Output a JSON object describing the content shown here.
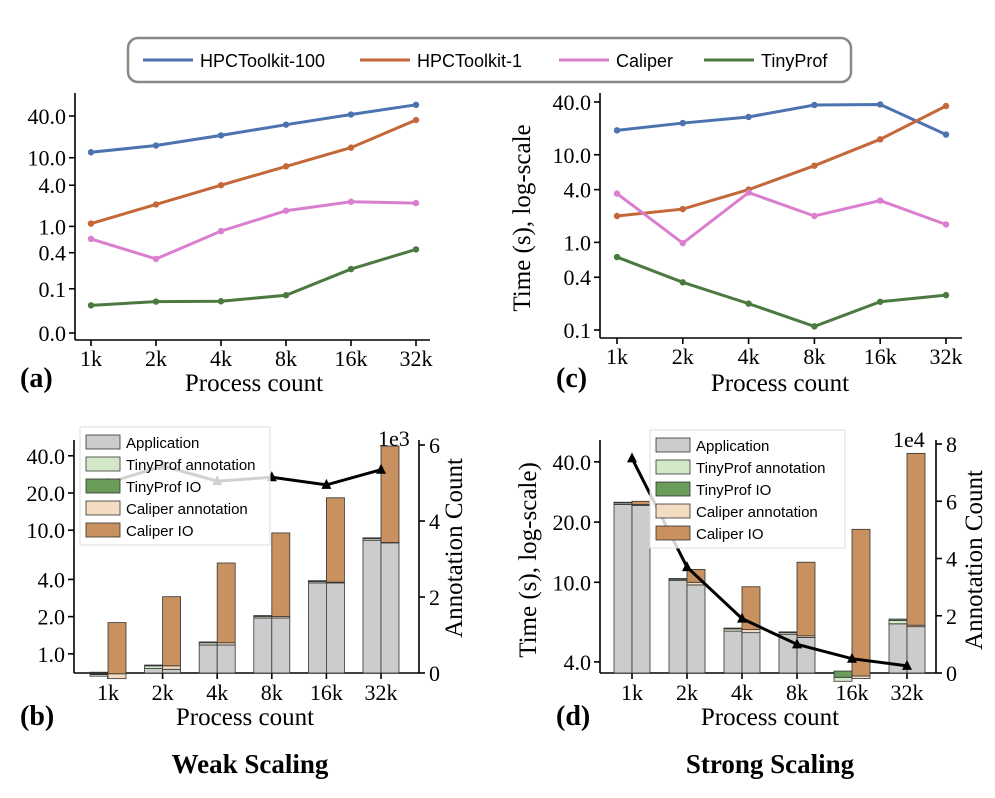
{
  "legend_top": {
    "entries": [
      {
        "label": "HPCToolkit-100",
        "color": "#4c72b0"
      },
      {
        "label": "HPCToolkit-1",
        "color": "#c4683a"
      },
      {
        "label": "Caliper",
        "color": "#da7fcf"
      },
      {
        "label": "TinyProf",
        "color": "#4a7a40"
      }
    ]
  },
  "captions": {
    "weak": "Weak Scaling",
    "strong": "Strong Scaling"
  },
  "chart_data": [
    {
      "panel": "(a)",
      "type": "line",
      "xlabel": "Process count",
      "ylabel": "",
      "scale": "log",
      "categories": [
        "1k",
        "2k",
        "4k",
        "8k",
        "16k",
        "32k"
      ],
      "yticks": [
        "0.0",
        "0.1",
        "0.4",
        "1.0",
        "4.0",
        "10.0",
        "40.0"
      ],
      "series": [
        {
          "name": "HPCToolkit-100",
          "color": "#4c72b0",
          "values": [
            12,
            15,
            21,
            30,
            42,
            58
          ]
        },
        {
          "name": "HPCToolkit-1",
          "color": "#c4683a",
          "values": [
            1.1,
            2.1,
            4.0,
            7.5,
            14,
            35
          ]
        },
        {
          "name": "Caliper",
          "color": "#da7fcf",
          "values": [
            0.65,
            0.32,
            0.85,
            1.7,
            2.3,
            2.2
          ]
        },
        {
          "name": "TinyProf",
          "color": "#4a7a40",
          "values": [
            0.045,
            0.055,
            0.056,
            0.075,
            0.22,
            0.45
          ]
        }
      ]
    },
    {
      "panel": "(c)",
      "type": "line",
      "xlabel": "Process count",
      "ylabel": "Time (s), log-scale",
      "scale": "log",
      "categories": [
        "1k",
        "2k",
        "4k",
        "8k",
        "16k",
        "32k"
      ],
      "yticks": [
        "0.1",
        "0.4",
        "1.0",
        "4.0",
        "10.0",
        "40.0"
      ],
      "series": [
        {
          "name": "HPCToolkit-100",
          "color": "#4c72b0",
          "values": [
            19,
            23,
            27,
            37,
            37.5,
            17
          ]
        },
        {
          "name": "HPCToolkit-1",
          "color": "#c4683a",
          "values": [
            2.0,
            2.4,
            4.0,
            7.5,
            15,
            36
          ]
        },
        {
          "name": "Caliper",
          "color": "#da7fcf",
          "values": [
            3.6,
            0.98,
            3.7,
            2.0,
            3.0,
            1.6
          ]
        },
        {
          "name": "TinyProf",
          "color": "#4a7a40",
          "values": [
            0.68,
            0.35,
            0.2,
            0.11,
            0.21,
            0.25
          ]
        }
      ]
    },
    {
      "panel": "(b)",
      "type": "bar",
      "xlabel": "Process count",
      "ylabel": "",
      "y2label": "Annotation Count",
      "y2exponent": "1e3",
      "categories": [
        "1k",
        "2k",
        "4k",
        "8k",
        "16k",
        "32k"
      ],
      "yticks": [
        "1.0",
        "2.0",
        "4.0",
        "10.0",
        "20.0",
        "40.0"
      ],
      "y2ticks": [
        "0",
        "2",
        "4",
        "6"
      ],
      "legend": [
        {
          "label": "Application",
          "color": "#cccccc"
        },
        {
          "label": "TinyProf annotation",
          "color": "#d3e8c9"
        },
        {
          "label": "TinyProf IO",
          "color": "#6a9d5a"
        },
        {
          "label": "Caliper annotation",
          "color": "#f3dcc2"
        },
        {
          "label": "Caliper IO",
          "color": "#c9915f"
        }
      ],
      "stacks": [
        {
          "category": "1k",
          "tinyprof": [
            0.66,
            0.02,
            0.005
          ],
          "caliper": [
            0.63,
            0.06,
            1.1
          ]
        },
        {
          "category": "2k",
          "tinyprof": [
            0.76,
            0.04,
            0.01
          ],
          "caliper": [
            0.75,
            0.05,
            2.1
          ]
        },
        {
          "category": "4k",
          "tinyprof": [
            1.18,
            0.05,
            0.01
          ],
          "caliper": [
            1.18,
            0.05,
            4.2
          ]
        },
        {
          "category": "8k",
          "tinyprof": [
            1.95,
            0.06,
            0.01
          ],
          "caliper": [
            1.95,
            0.06,
            7.5
          ]
        },
        {
          "category": "16k",
          "tinyprof": [
            3.75,
            0.1,
            0.02
          ],
          "caliper": [
            3.75,
            0.05,
            14.5
          ]
        },
        {
          "category": "32k",
          "tinyprof": [
            8.3,
            0.25,
            0.05
          ],
          "caliper": [
            7.9,
            0.05,
            40
          ]
        }
      ],
      "annotation_count": [
        5.0,
        5.45,
        5.05,
        5.15,
        4.95,
        5.35
      ]
    },
    {
      "panel": "(d)",
      "type": "bar",
      "xlabel": "Process count",
      "ylabel": "Time (s), log-scale)",
      "y2label": "Annotation Count",
      "y2exponent": "1e4",
      "categories": [
        "1k",
        "2k",
        "4k",
        "8k",
        "16k",
        "32k"
      ],
      "yticks": [
        "4.0",
        "10.0",
        "20.0",
        "40.0"
      ],
      "y2ticks": [
        "0",
        "2",
        "4",
        "6",
        "8"
      ],
      "legend": [
        {
          "label": "Application",
          "color": "#cccccc"
        },
        {
          "label": "TinyProf annotation",
          "color": "#d3e8c9"
        },
        {
          "label": "TinyProf IO",
          "color": "#6a9d5a"
        },
        {
          "label": "Caliper annotation",
          "color": "#f3dcc2"
        },
        {
          "label": "Caliper IO",
          "color": "#c9915f"
        }
      ],
      "stacks": [
        {
          "category": "1k",
          "tinyprof": [
            24.5,
            0.4,
            0.1
          ],
          "caliper": [
            24.2,
            0.3,
            0.9
          ]
        },
        {
          "category": "2k",
          "tinyprof": [
            10.2,
            0.15,
            0.05
          ],
          "caliper": [
            9.7,
            0.3,
            1.6
          ]
        },
        {
          "category": "4k",
          "tinyprof": [
            5.7,
            0.15,
            0.05
          ],
          "caliper": [
            5.6,
            0.2,
            3.7
          ]
        },
        {
          "category": "8k",
          "tinyprof": [
            5.5,
            0.1,
            0.05
          ],
          "caliper": [
            5.3,
            0.1,
            7.2
          ]
        },
        {
          "category": "16k",
          "tinyprof": [
            3.2,
            0.15,
            0.25
          ],
          "caliper": [
            3.3,
            0.1,
            15.0
          ]
        },
        {
          "category": "32k",
          "tinyprof": [
            6.2,
            0.25,
            0.1
          ],
          "caliper": [
            6.0,
            0.1,
            38.0
          ]
        }
      ],
      "annotation_count": [
        7.5,
        3.7,
        1.9,
        1.0,
        0.5,
        0.25
      ]
    }
  ]
}
